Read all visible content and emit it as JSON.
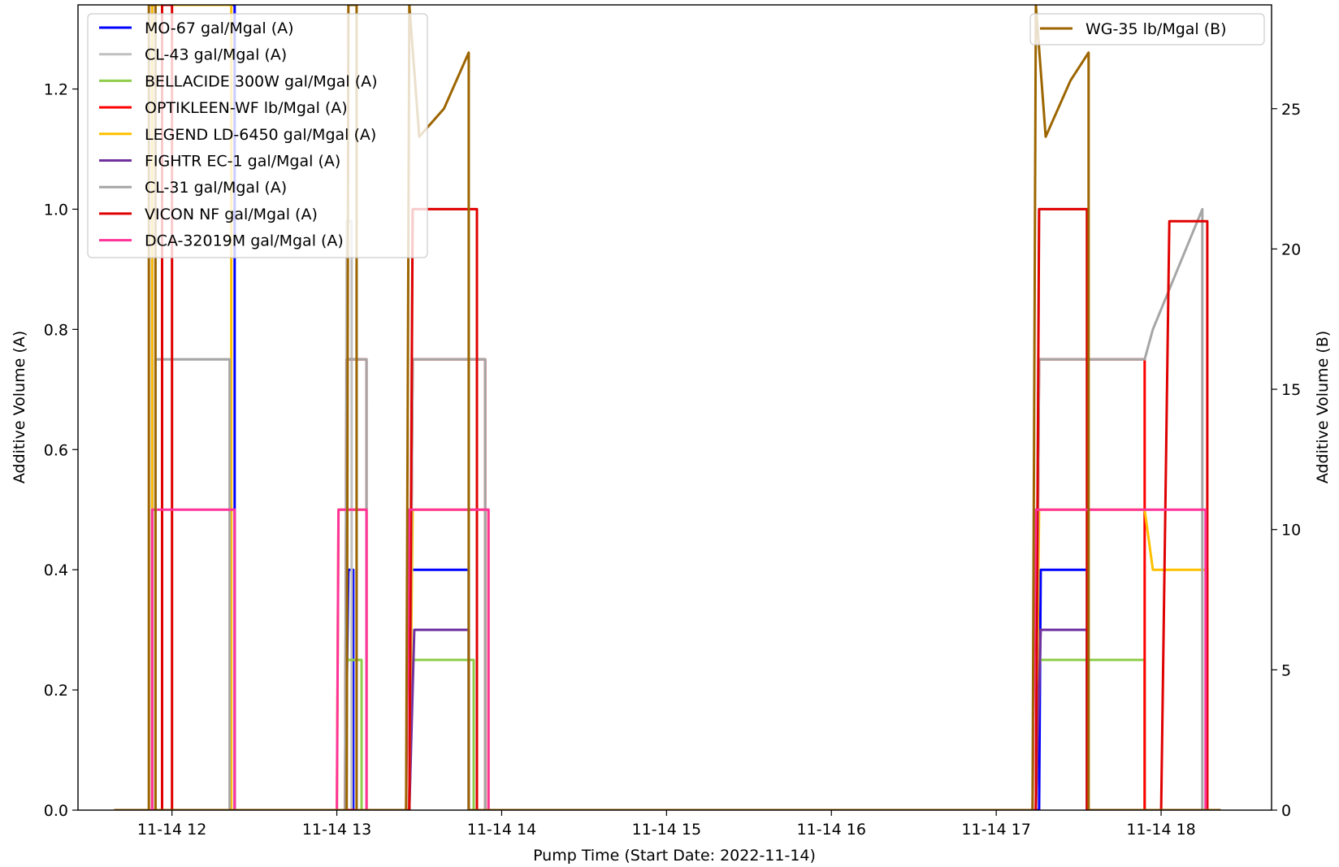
{
  "chart_data": {
    "type": "line",
    "title": "",
    "xlabel": "Pump Time (Start Date: 2022-11-14)",
    "ylabel_left": "Additive Volume (A)",
    "ylabel_right": "Additive Volume (B)",
    "x_ticks": [
      "11-14 12",
      "11-14 13",
      "11-14 14",
      "11-14 15",
      "11-14 16",
      "11-14 17",
      "11-14 18"
    ],
    "x_tick_hours": [
      12,
      13,
      14,
      15,
      16,
      17,
      18
    ],
    "xlim_hours": [
      11.43,
      18.67
    ],
    "ylim_left": [
      0,
      1.34
    ],
    "ylim_right": [
      0,
      28.7
    ],
    "y_left_ticks": [
      "0.0",
      "0.2",
      "0.4",
      "0.6",
      "0.8",
      "1.0",
      "1.2"
    ],
    "y_left_values": [
      0,
      0.2,
      0.4,
      0.6,
      0.8,
      1.0,
      1.2
    ],
    "y_right_ticks": [
      "0",
      "5",
      "10",
      "15",
      "20",
      "25"
    ],
    "y_right_values": [
      0,
      5,
      10,
      15,
      20,
      25
    ],
    "grid": false,
    "legend_left_placement": "top-left",
    "legend_right_placement": "top-right",
    "series": [
      {
        "name": "MO-67 gal/Mgal (A)",
        "axis": "A",
        "color": "#0000ff",
        "points": [
          [
            11.65,
            0
          ],
          [
            11.88,
            0
          ],
          [
            11.88,
            1.34
          ],
          [
            12.38,
            1.34
          ],
          [
            12.38,
            0
          ],
          [
            13.05,
            0
          ],
          [
            13.07,
            0.4
          ],
          [
            13.1,
            0.4
          ],
          [
            13.1,
            0
          ],
          [
            13.44,
            0
          ],
          [
            13.45,
            0.4
          ],
          [
            13.8,
            0.4
          ],
          [
            13.8,
            0
          ],
          [
            17.26,
            0
          ],
          [
            17.27,
            0.4
          ],
          [
            17.55,
            0.4
          ],
          [
            17.55,
            0
          ],
          [
            18.36,
            0
          ]
        ]
      },
      {
        "name": "CL-43 gal/Mgal (A)",
        "axis": "A",
        "color": "#c0c0c0",
        "points": [
          [
            11.65,
            0
          ],
          [
            11.9,
            0
          ],
          [
            11.9,
            0.75
          ],
          [
            12.35,
            0.75
          ],
          [
            12.35,
            0
          ],
          [
            13.05,
            0
          ],
          [
            13.06,
            0.98
          ],
          [
            13.09,
            0.98
          ],
          [
            13.09,
            0
          ],
          [
            13.44,
            0
          ],
          [
            13.46,
            1.0
          ],
          [
            13.8,
            1.0
          ],
          [
            13.8,
            0
          ],
          [
            17.24,
            0
          ],
          [
            17.26,
            1.0
          ],
          [
            17.55,
            1.0
          ],
          [
            17.55,
            0
          ],
          [
            18.36,
            0
          ]
        ]
      },
      {
        "name": "BELLACIDE 300W gal/Mgal (A)",
        "axis": "A",
        "color": "#8fcd4b",
        "points": [
          [
            11.65,
            0
          ],
          [
            13.05,
            0
          ],
          [
            13.06,
            0.25
          ],
          [
            13.15,
            0.25
          ],
          [
            13.15,
            0
          ],
          [
            13.44,
            0
          ],
          [
            13.46,
            0.25
          ],
          [
            13.83,
            0.25
          ],
          [
            13.83,
            0
          ],
          [
            17.24,
            0
          ],
          [
            17.26,
            0.25
          ],
          [
            17.9,
            0.25
          ],
          [
            17.9,
            0
          ],
          [
            18.36,
            0
          ]
        ]
      },
      {
        "name": "OPTIKLEEN-WF lb/Mgal (A)",
        "axis": "A",
        "color": "#ff0000",
        "points": [
          [
            11.65,
            0
          ],
          [
            13.05,
            0
          ],
          [
            13.06,
            0.75
          ],
          [
            13.18,
            0.75
          ],
          [
            13.18,
            0
          ],
          [
            13.44,
            0
          ],
          [
            13.46,
            0.75
          ],
          [
            13.9,
            0.75
          ],
          [
            13.9,
            0
          ],
          [
            17.24,
            0
          ],
          [
            17.26,
            0.75
          ],
          [
            17.9,
            0.75
          ],
          [
            17.9,
            0
          ],
          [
            18.36,
            0
          ]
        ]
      },
      {
        "name": "LEGEND LD-6450 gal/Mgal (A)",
        "axis": "A",
        "color": "#ffc000",
        "points": [
          [
            11.65,
            0
          ],
          [
            11.88,
            0
          ],
          [
            11.88,
            1.34
          ],
          [
            12.36,
            1.34
          ],
          [
            12.36,
            0
          ],
          [
            13.0,
            0
          ],
          [
            13.01,
            0.5
          ],
          [
            13.18,
            0.5
          ],
          [
            13.18,
            0
          ],
          [
            13.44,
            0
          ],
          [
            13.46,
            0.5
          ],
          [
            13.92,
            0.5
          ],
          [
            13.92,
            0
          ],
          [
            17.24,
            0
          ],
          [
            17.26,
            0.5
          ],
          [
            17.9,
            0.5
          ],
          [
            17.95,
            0.4
          ],
          [
            18.28,
            0.4
          ],
          [
            18.28,
            0
          ],
          [
            18.36,
            0
          ]
        ]
      },
      {
        "name": "FIGHTR EC-1 gal/Mgal (A)",
        "axis": "A",
        "color": "#7030a0",
        "points": [
          [
            11.65,
            0
          ],
          [
            13.44,
            0
          ],
          [
            13.47,
            0.3
          ],
          [
            13.8,
            0.3
          ],
          [
            13.8,
            0
          ],
          [
            17.24,
            0
          ],
          [
            17.27,
            0.3
          ],
          [
            17.55,
            0.3
          ],
          [
            17.55,
            0
          ],
          [
            18.36,
            0
          ]
        ]
      },
      {
        "name": "CL-31 gal/Mgal (A)",
        "axis": "A",
        "color": "#a6a6a6",
        "points": [
          [
            11.65,
            0
          ],
          [
            11.9,
            0
          ],
          [
            11.9,
            0.75
          ],
          [
            12.35,
            0.75
          ],
          [
            12.35,
            0
          ],
          [
            13.05,
            0
          ],
          [
            13.06,
            0.75
          ],
          [
            13.18,
            0.75
          ],
          [
            13.18,
            0
          ],
          [
            13.44,
            0
          ],
          [
            13.46,
            0.75
          ],
          [
            13.9,
            0.75
          ],
          [
            13.9,
            0
          ],
          [
            17.24,
            0
          ],
          [
            17.26,
            0.75
          ],
          [
            17.9,
            0.75
          ],
          [
            17.95,
            0.8
          ],
          [
            18.25,
            1.0
          ],
          [
            18.25,
            0
          ],
          [
            18.36,
            0
          ]
        ]
      },
      {
        "name": "VICON NF gal/Mgal (A)",
        "axis": "A",
        "color": "#e00000",
        "points": [
          [
            11.65,
            0
          ],
          [
            11.94,
            0
          ],
          [
            11.94,
            1.34
          ],
          [
            12.0,
            1.34
          ],
          [
            12.0,
            0
          ],
          [
            13.44,
            0
          ],
          [
            13.46,
            1.0
          ],
          [
            13.85,
            1.0
          ],
          [
            13.85,
            0
          ],
          [
            17.24,
            0
          ],
          [
            17.26,
            1.0
          ],
          [
            17.55,
            1.0
          ],
          [
            17.55,
            0
          ],
          [
            18.0,
            0
          ],
          [
            18.05,
            0.98
          ],
          [
            18.28,
            0.98
          ],
          [
            18.28,
            0
          ],
          [
            18.36,
            0
          ]
        ]
      },
      {
        "name": "DCA-32019M gal/Mgal (A)",
        "axis": "A",
        "color": "#ff3399",
        "points": [
          [
            11.65,
            0
          ],
          [
            11.88,
            0
          ],
          [
            11.88,
            0.5
          ],
          [
            12.38,
            0.5
          ],
          [
            12.38,
            0
          ],
          [
            13.0,
            0
          ],
          [
            13.01,
            0.5
          ],
          [
            13.18,
            0.5
          ],
          [
            13.18,
            0
          ],
          [
            13.42,
            0
          ],
          [
            13.44,
            0.5
          ],
          [
            13.92,
            0.5
          ],
          [
            13.92,
            0
          ],
          [
            17.22,
            0
          ],
          [
            17.24,
            0.5
          ],
          [
            18.27,
            0.5
          ],
          [
            18.27,
            0
          ],
          [
            18.36,
            0
          ]
        ]
      },
      {
        "name": "WG-35 lb/Mgal (B)",
        "axis": "B",
        "color": "#9c6500",
        "points": [
          [
            11.65,
            0
          ],
          [
            11.86,
            0
          ],
          [
            11.86,
            28.7
          ],
          [
            11.9,
            28.7
          ],
          [
            11.9,
            0
          ],
          [
            13.06,
            0
          ],
          [
            13.07,
            28.7
          ],
          [
            13.12,
            28.7
          ],
          [
            13.12,
            0
          ],
          [
            13.42,
            0
          ],
          [
            13.44,
            28.7
          ],
          [
            13.5,
            24
          ],
          [
            13.65,
            25
          ],
          [
            13.8,
            27
          ],
          [
            13.8,
            0
          ],
          [
            17.22,
            0
          ],
          [
            17.24,
            28.7
          ],
          [
            17.3,
            24
          ],
          [
            17.45,
            26
          ],
          [
            17.56,
            27
          ],
          [
            17.56,
            0
          ],
          [
            18.36,
            0
          ]
        ]
      }
    ]
  }
}
